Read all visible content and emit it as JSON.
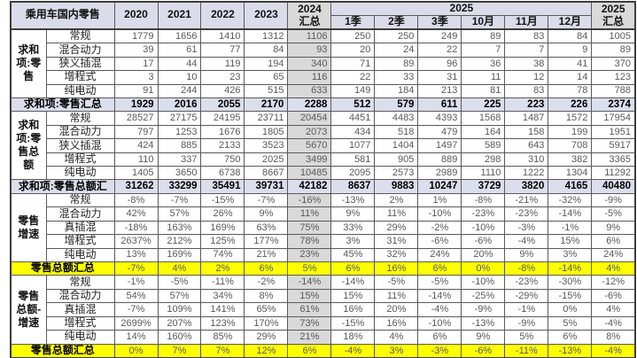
{
  "table": {
    "header": {
      "title": "乘用车国内零售",
      "years": [
        "2020",
        "2021",
        "2022",
        "2023"
      ],
      "y2024": "2024 汇总",
      "y2025_group": "2025",
      "months": [
        "1季",
        "2季",
        "3季",
        "10月",
        "11月",
        "12月"
      ],
      "y2025": "2025 汇总"
    },
    "colors": {
      "header_bg": "#dadcea",
      "total_row_bg": "#dbdeec",
      "gray_col_bg": "#d9d9d9",
      "highlight_bg": "#ffff00",
      "value_text": "#595959"
    },
    "rows": [
      {
        "kind": "data",
        "group": "求和项:零售",
        "span": 5,
        "label": "常规",
        "values": [
          "1779",
          "1656",
          "1410",
          "1312",
          "1106",
          "250",
          "250",
          "249",
          "89",
          "83",
          "84",
          "1005"
        ]
      },
      {
        "kind": "data",
        "label": "混合动力",
        "values": [
          "39",
          "61",
          "77",
          "84",
          "93",
          "20",
          "24",
          "22",
          "7",
          "7",
          "9",
          "89"
        ]
      },
      {
        "kind": "data",
        "label": "狭义插混",
        "values": [
          "17",
          "44",
          "119",
          "194",
          "340",
          "71",
          "89",
          "96",
          "36",
          "38",
          "41",
          "370"
        ]
      },
      {
        "kind": "data",
        "label": "增程式",
        "values": [
          "3",
          "10",
          "23",
          "65",
          "116",
          "22",
          "33",
          "31",
          "11",
          "12",
          "14",
          "123"
        ]
      },
      {
        "kind": "data",
        "label": "纯电动",
        "values": [
          "91",
          "244",
          "426",
          "515",
          "633",
          "149",
          "184",
          "213",
          "81",
          "83",
          "78",
          "788"
        ]
      },
      {
        "kind": "total",
        "label": "求和项:零售汇总",
        "values": [
          "1929",
          "2016",
          "2055",
          "2170",
          "2288",
          "512",
          "579",
          "611",
          "225",
          "223",
          "226",
          "2374"
        ]
      },
      {
        "kind": "data",
        "group": "求和项:零售总额",
        "span": 5,
        "label": "常规",
        "values": [
          "28527",
          "27175",
          "24195",
          "23711",
          "20454",
          "4451",
          "4483",
          "4393",
          "1568",
          "1487",
          "1572",
          "17954"
        ]
      },
      {
        "kind": "data",
        "label": "混合动力",
        "values": [
          "797",
          "1253",
          "1676",
          "1805",
          "2073",
          "434",
          "518",
          "479",
          "164",
          "158",
          "199",
          "1951"
        ]
      },
      {
        "kind": "data",
        "label": "狭义插混",
        "values": [
          "424",
          "885",
          "2133",
          "3523",
          "5670",
          "1077",
          "1404",
          "1497",
          "589",
          "643",
          "708",
          "5917"
        ]
      },
      {
        "kind": "data",
        "label": "增程式",
        "values": [
          "110",
          "337",
          "750",
          "2025",
          "3499",
          "581",
          "905",
          "889",
          "298",
          "310",
          "382",
          "3365"
        ]
      },
      {
        "kind": "data",
        "label": "纯电动",
        "values": [
          "1405",
          "3650",
          "6738",
          "8667",
          "10485",
          "2095",
          "2573",
          "2989",
          "1110",
          "1222",
          "1304",
          "11292"
        ]
      },
      {
        "kind": "total",
        "label": "求和项:零售总额汇",
        "values": [
          "31262",
          "33299",
          "35491",
          "39731",
          "42182",
          "8637",
          "9883",
          "10247",
          "3729",
          "3820",
          "4165",
          "40480"
        ]
      },
      {
        "kind": "data",
        "group": "零售增速",
        "span": 5,
        "label": "常规",
        "values": [
          "-8%",
          "-7%",
          "-15%",
          "-7%",
          "-16%",
          "-13%",
          "2%",
          "1%",
          "-8%",
          "-21%",
          "-32%",
          "-9%"
        ]
      },
      {
        "kind": "data",
        "label": "混合动力",
        "values": [
          "42%",
          "57%",
          "26%",
          "9%",
          "11%",
          "9%",
          "11%",
          "-10%",
          "-23%",
          "-23%",
          "-14%",
          "-5%"
        ]
      },
      {
        "kind": "data",
        "label": "真插混",
        "values": [
          "-18%",
          "163%",
          "169%",
          "63%",
          "75%",
          "33%",
          "29%",
          "-2%",
          "-10%",
          "-3%",
          "-1%",
          "9%"
        ]
      },
      {
        "kind": "data",
        "label": "增程式",
        "values": [
          "2637%",
          "212%",
          "125%",
          "177%",
          "78%",
          "3%",
          "31%",
          "-6%",
          "-6%",
          "-4%",
          "15%",
          "6%"
        ]
      },
      {
        "kind": "data",
        "label": "纯电动",
        "values": [
          "13%",
          "169%",
          "74%",
          "21%",
          "23%",
          "45%",
          "32%",
          "24%",
          "20%",
          "9%",
          "3%",
          "24%"
        ]
      },
      {
        "kind": "yellow",
        "label": "零售总额汇总",
        "values": [
          "-7%",
          "4%",
          "2%",
          "6%",
          "5%",
          "6%",
          "16%",
          "6%",
          "0%",
          "-8%",
          "-14%",
          "4%"
        ]
      },
      {
        "kind": "data",
        "group": "零售总额-增速",
        "span": 5,
        "label": "常规",
        "values": [
          "-1%",
          "-5%",
          "-11%",
          "-2%",
          "-14%",
          "-14%",
          "-5%",
          "-5%",
          "-10%",
          "-23%",
          "-30%",
          "-12%"
        ]
      },
      {
        "kind": "data",
        "label": "混合动力",
        "values": [
          "54%",
          "57%",
          "34%",
          "8%",
          "15%",
          "15%",
          "11%",
          "-14%",
          "-25%",
          "-29%",
          "-15%",
          "-6%"
        ]
      },
      {
        "kind": "data",
        "label": "真插混",
        "values": [
          "-7%",
          "109%",
          "141%",
          "65%",
          "61%",
          "16%",
          "20%",
          "-4%",
          "-9%",
          "-1%",
          "0%",
          "4%"
        ]
      },
      {
        "kind": "data",
        "label": "增程式",
        "values": [
          "2699%",
          "207%",
          "123%",
          "170%",
          "73%",
          "-15%",
          "16%",
          "-10%",
          "-13%",
          "-9%",
          "5%",
          "-4%"
        ]
      },
      {
        "kind": "data",
        "label": "纯电动",
        "values": [
          "14%",
          "160%",
          "85%",
          "29%",
          "21%",
          "18%",
          "4%",
          "6%",
          "9%",
          "5%",
          "6%",
          "8%"
        ]
      },
      {
        "kind": "yellow",
        "label": "零售总额汇总",
        "values": [
          "0%",
          "7%",
          "7%",
          "12%",
          "6%",
          "-4%",
          "3%",
          "-3%",
          "-6%",
          "-11%",
          "-13%",
          "-4%"
        ]
      }
    ]
  }
}
